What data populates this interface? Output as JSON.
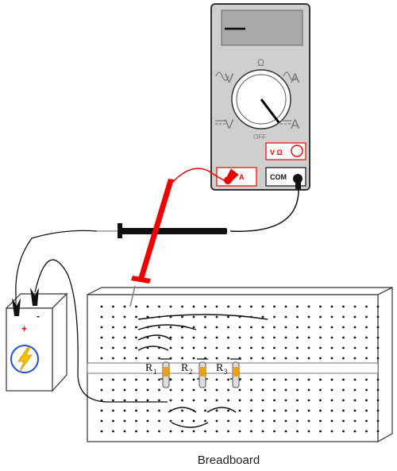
{
  "multimeter": {
    "display": "—",
    "dial_labels": {
      "ohm": "Ω",
      "ac_volts": "V",
      "ac_amps": "A",
      "dc_volts": "V",
      "dc_amps": "A",
      "off": "OFF"
    },
    "jacks": {
      "amps": "A",
      "com": "COM",
      "volt_ohm": "V Ω"
    }
  },
  "battery": {
    "positive": "+",
    "negative": "-"
  },
  "resistors": {
    "r1": "R",
    "r1_sub": "1",
    "r2": "R",
    "r2_sub": "2",
    "r3": "R",
    "r3_sub": "3"
  },
  "breadboard": {
    "label": "Breadboard"
  },
  "colors": {
    "red_lead": "#ee0000",
    "black_lead": "#111111",
    "meter_body": "#cfcfcf",
    "resistor_band": "#e8a020",
    "bolt": "#f2c200",
    "bolt_ring": "#1f4fd6"
  }
}
